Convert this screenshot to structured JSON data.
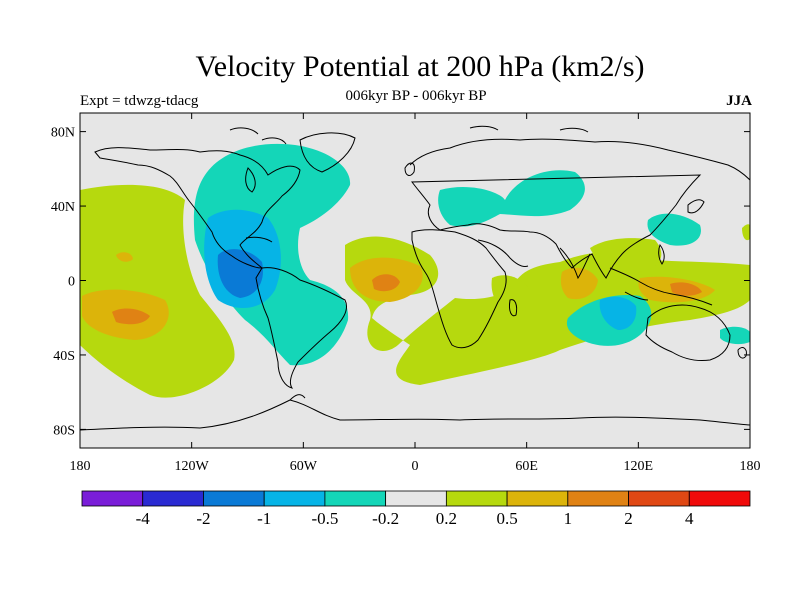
{
  "header": {
    "title": "Velocity Potential at 200 hPa (km2/s)",
    "subtitle": "006kyr BP - 006kyr BP",
    "left_label": "Expt = tdwzg-tdacg",
    "right_label": "JJA"
  },
  "map": {
    "projection": "cylindrical-equidistant",
    "lon_range": [
      -180,
      180
    ],
    "lat_range": [
      -90,
      90
    ],
    "lat_ticks": [
      {
        "value": 80,
        "label": "80N"
      },
      {
        "value": 40,
        "label": "40N"
      },
      {
        "value": 0,
        "label": "0"
      },
      {
        "value": -40,
        "label": "40S"
      },
      {
        "value": -80,
        "label": "80S"
      }
    ],
    "lon_ticks": [
      {
        "value": -180,
        "label": "180"
      },
      {
        "value": -120,
        "label": "120W"
      },
      {
        "value": -60,
        "label": "60W"
      },
      {
        "value": 0,
        "label": "0"
      },
      {
        "value": 60,
        "label": "60E"
      },
      {
        "value": 120,
        "label": "120E"
      },
      {
        "value": 180,
        "label": "180"
      }
    ],
    "background_color": "#e6e6e6"
  },
  "colorbar": {
    "colors": [
      "#7a1ed8",
      "#2a2ad2",
      "#0a7ad6",
      "#06b4e6",
      "#14d6b8",
      "#e6e6e6",
      "#b6d90e",
      "#dcb40a",
      "#e08214",
      "#e04814",
      "#f00a0a"
    ],
    "labels": [
      "-4",
      "-2",
      "-1",
      "-0.5",
      "-0.2",
      "0.2",
      "0.5",
      "1",
      "2",
      "4"
    ]
  }
}
